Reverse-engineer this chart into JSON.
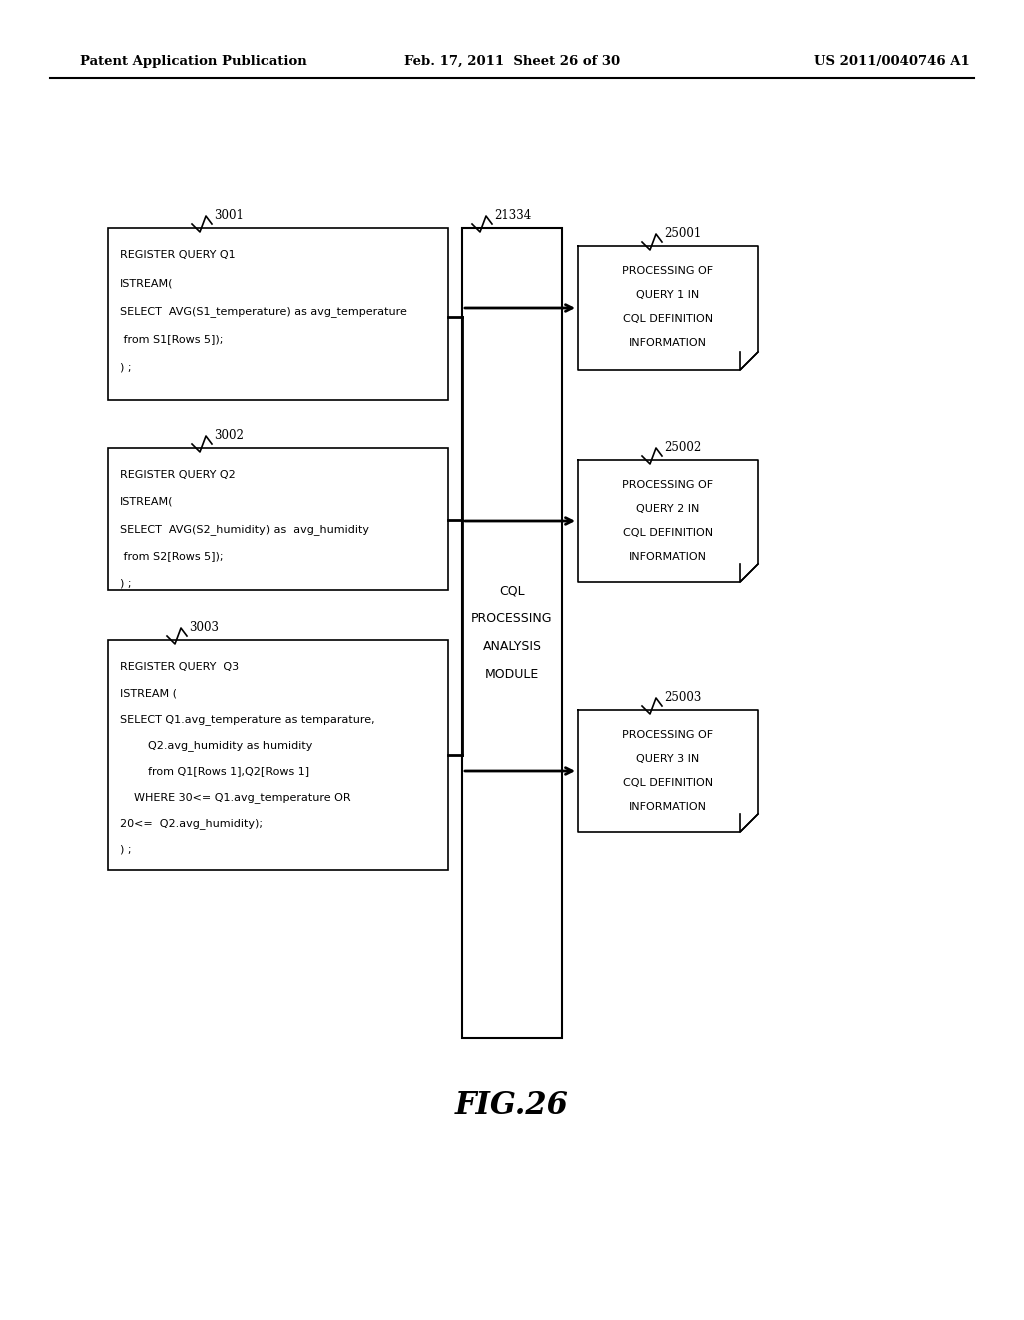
{
  "bg_color": "#ffffff",
  "header_left": "Patent Application Publication",
  "header_mid": "Feb. 17, 2011  Sheet 26 of 30",
  "header_right": "US 2011/0040746 A1",
  "fig_label": "FIG.26",
  "box1_label": "3001",
  "box1_lines": [
    "REGISTER QUERY Q1",
    "ISTREAM(",
    "SELECT  AVG(S1_temperature) as avg_temperature",
    " from S1[Rows 5]);",
    ") ;"
  ],
  "box2_label": "3002",
  "box2_lines": [
    "REGISTER QUERY Q2",
    "ISTREAM(",
    "SELECT  AVG(S2_humidity) as  avg_humidity",
    " from S2[Rows 5]);",
    ") ;"
  ],
  "box3_label": "3003",
  "box3_lines": [
    "REGISTER QUERY  Q3",
    "ISTREAM (",
    "SELECT Q1.avg_temperature as temparature,",
    "        Q2.avg_humidity as humidity",
    "        from Q1[Rows 1],Q2[Rows 1]",
    "    WHERE 30<= Q1.avg_temperature OR",
    "20<=  Q2.avg_humidity);",
    ") ;"
  ],
  "center_box_label": "21334",
  "center_box_text": [
    "CQL",
    "PROCESSING",
    "ANALYSIS",
    "MODULE"
  ],
  "out1_label": "25001",
  "out1_lines": [
    "PROCESSING OF",
    "QUERY 1 IN",
    "CQL DEFINITION",
    "INFORMATION"
  ],
  "out2_label": "25002",
  "out2_lines": [
    "PROCESSING OF",
    "QUERY 2 IN",
    "CQL DEFINITION",
    "INFORMATION"
  ],
  "out3_label": "25003",
  "out3_lines": [
    "PROCESSING OF",
    "QUERY 3 IN",
    "CQL DEFINITION",
    "INFORMATION"
  ]
}
